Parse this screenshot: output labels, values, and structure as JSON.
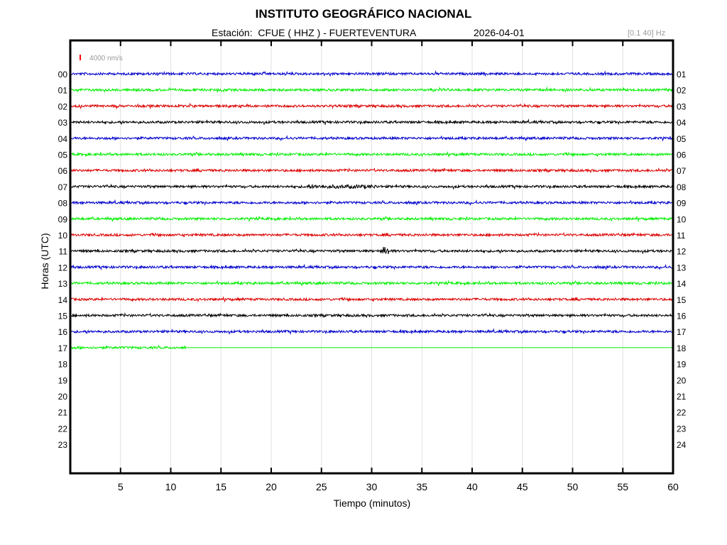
{
  "header": {
    "title": "INSTITUTO GEOGRÁFICO NACIONAL",
    "station": "Estación:  CFUE ( HHZ ) - FUERTEVENTURA",
    "date": "2026-04-01",
    "filter": "[0.1 40] Hz"
  },
  "chart_data": {
    "type": "line",
    "title": "INSTITUTO GEOGRÁFICO NACIONAL",
    "xlabel": "Tiempo (minutos)",
    "ylabel": "Horas (UTC)",
    "xlim": [
      0,
      60
    ],
    "xticks": [
      "5",
      "10",
      "15",
      "20",
      "25",
      "30",
      "35",
      "40",
      "45",
      "50",
      "55",
      "60"
    ],
    "xtick_values": [
      5,
      10,
      15,
      20,
      25,
      30,
      35,
      40,
      45,
      50,
      55,
      60
    ],
    "grid": true,
    "scale_label": "4000 nm/s",
    "scale_color": "#ff0000",
    "rows": [
      {
        "left": "00",
        "right": "01",
        "color": "#0000cc",
        "data_until": 60
      },
      {
        "left": "01",
        "right": "02",
        "color": "#00ee00",
        "data_until": 60
      },
      {
        "left": "02",
        "right": "03",
        "color": "#dd0000",
        "data_until": 60
      },
      {
        "left": "03",
        "right": "04",
        "color": "#000000",
        "data_until": 60
      },
      {
        "left": "04",
        "right": "05",
        "color": "#0000cc",
        "data_until": 60
      },
      {
        "left": "05",
        "right": "06",
        "color": "#00ee00",
        "data_until": 60
      },
      {
        "left": "06",
        "right": "07",
        "color": "#dd0000",
        "data_until": 60
      },
      {
        "left": "07",
        "right": "08",
        "color": "#000000",
        "data_until": 60
      },
      {
        "left": "08",
        "right": "09",
        "color": "#0000cc",
        "data_until": 60
      },
      {
        "left": "09",
        "right": "10",
        "color": "#00ee00",
        "data_until": 60
      },
      {
        "left": "10",
        "right": "11",
        "color": "#dd0000",
        "data_until": 60
      },
      {
        "left": "11",
        "right": "12",
        "color": "#000000",
        "data_until": 60
      },
      {
        "left": "12",
        "right": "13",
        "color": "#0000cc",
        "data_until": 60
      },
      {
        "left": "13",
        "right": "14",
        "color": "#00ee00",
        "data_until": 60
      },
      {
        "left": "14",
        "right": "15",
        "color": "#dd0000",
        "data_until": 60
      },
      {
        "left": "15",
        "right": "16",
        "color": "#000000",
        "data_until": 60
      },
      {
        "left": "16",
        "right": "17",
        "color": "#0000cc",
        "data_until": 60
      },
      {
        "left": "17",
        "right": "18",
        "color": "#00ee00",
        "data_until": 11.6
      },
      {
        "left": "18",
        "right": "19",
        "color": "#0000cc",
        "data_until": 0
      },
      {
        "left": "19",
        "right": "20",
        "color": "#00ee00",
        "data_until": 0
      },
      {
        "left": "20",
        "right": "21",
        "color": "#dd0000",
        "data_until": 0
      },
      {
        "left": "21",
        "right": "22",
        "color": "#000000",
        "data_until": 0
      },
      {
        "left": "22",
        "right": "23",
        "color": "#0000cc",
        "data_until": 0
      },
      {
        "left": "23",
        "right": "24",
        "color": "#00ee00",
        "data_until": 0
      }
    ]
  }
}
